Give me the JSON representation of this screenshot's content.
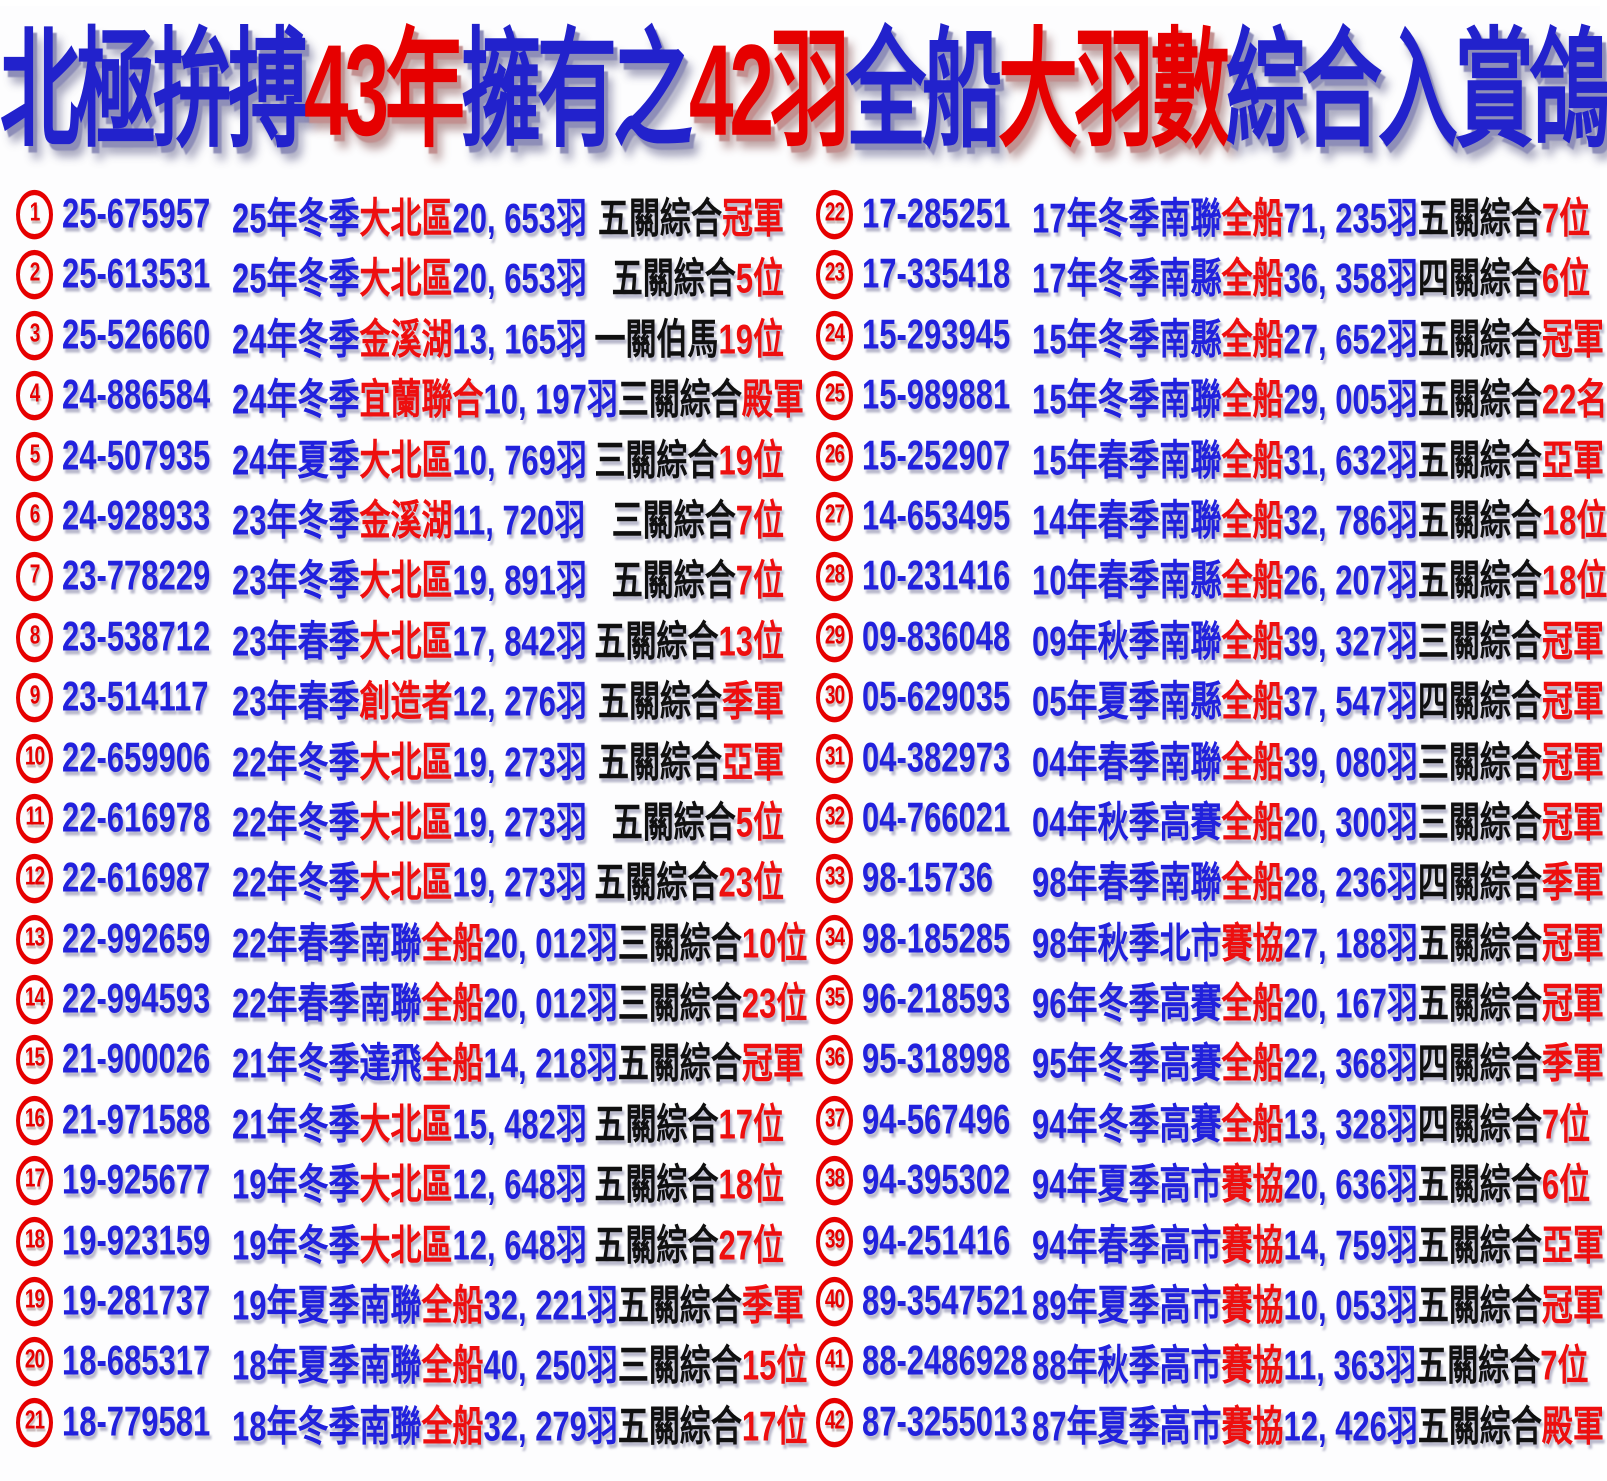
{
  "title": {
    "segments": [
      {
        "t": "北極拚搏",
        "c": "blue"
      },
      {
        "t": "43年",
        "c": "red"
      },
      {
        "t": "擁有之",
        "c": "blue"
      },
      {
        "t": "42羽",
        "c": "red"
      },
      {
        "t": "全船",
        "c": "blue"
      },
      {
        "t": "大羽數",
        "c": "red"
      },
      {
        "t": "綜合入賞鴿",
        "c": "blue"
      }
    ]
  },
  "colors": {
    "title_blue": "#2222cc",
    "title_red": "#e60000",
    "row_blue": "#2121dd",
    "row_red": "#ee0f0f",
    "row_black": "#101010",
    "badge_red": "#e60000",
    "background": "#fdfdfe"
  },
  "columns": [
    {
      "rows": [
        {
          "no": "1",
          "ring": "25-675957",
          "season": "25年冬季",
          "club": "大北區",
          "count": "20, 653羽",
          "race": "五關綜合",
          "result": "冠軍"
        },
        {
          "no": "2",
          "ring": "25-613531",
          "season": "25年冬季",
          "club": "大北區",
          "count": "20, 653羽",
          "race": "五關綜合",
          "result": "5位"
        },
        {
          "no": "3",
          "ring": "25-526660",
          "season": "24年冬季",
          "club": "金溪湖",
          "count": "13, 165羽",
          "race": "一關伯馬",
          "result": "19位"
        },
        {
          "no": "4",
          "ring": "24-886584",
          "season": "24年冬季",
          "club": "宜蘭聯合",
          "count": "10, 197羽",
          "race": "三關綜合",
          "result": "殿軍"
        },
        {
          "no": "5",
          "ring": "24-507935",
          "season": "24年夏季",
          "club": "大北區",
          "count": "10, 769羽",
          "race": "三關綜合",
          "result": "19位"
        },
        {
          "no": "6",
          "ring": "24-928933",
          "season": "23年冬季",
          "club": "金溪湖",
          "count": "11, 720羽",
          "race": "三關綜合",
          "result": "7位"
        },
        {
          "no": "7",
          "ring": "23-778229",
          "season": "23年冬季",
          "club": "大北區",
          "count": "19, 891羽",
          "race": "五關綜合",
          "result": "7位"
        },
        {
          "no": "8",
          "ring": "23-538712",
          "season": "23年春季",
          "club": "大北區",
          "count": "17, 842羽",
          "race": "五關綜合",
          "result": "13位"
        },
        {
          "no": "9",
          "ring": "23-514117",
          "season": "23年春季",
          "club": "創造者",
          "count": "12, 276羽",
          "race": "五關綜合",
          "result": "季軍"
        },
        {
          "no": "10",
          "ring": "22-659906",
          "season": "22年冬季",
          "club": "大北區",
          "count": "19, 273羽",
          "race": "五關綜合",
          "result": "亞軍"
        },
        {
          "no": "11",
          "ring": "22-616978",
          "season": "22年冬季",
          "club": "大北區",
          "count": "19, 273羽",
          "race": "五關綜合",
          "result": "5位"
        },
        {
          "no": "12",
          "ring": "22-616987",
          "season": "22年冬季",
          "club": "大北區",
          "count": "19, 273羽",
          "race": "五關綜合",
          "result": "23位"
        },
        {
          "no": "13",
          "ring": "22-992659",
          "season": "22年春季南聯",
          "club": "全船",
          "count": "20, 012羽",
          "race": "三關綜合",
          "result": "10位"
        },
        {
          "no": "14",
          "ring": "22-994593",
          "season": "22年春季南聯",
          "club": "全船",
          "count": "20, 012羽",
          "race": "三關綜合",
          "result": "23位"
        },
        {
          "no": "15",
          "ring": "21-900026",
          "season": "21年冬季達飛",
          "club": "全船",
          "count": "14, 218羽",
          "race": "五關綜合",
          "result": "冠軍"
        },
        {
          "no": "16",
          "ring": "21-971588",
          "season": "21年冬季",
          "club": "大北區",
          "count": "15, 482羽",
          "race": "五關綜合",
          "result": "17位"
        },
        {
          "no": "17",
          "ring": "19-925677",
          "season": "19年冬季",
          "club": "大北區",
          "count": "12, 648羽",
          "race": "五關綜合",
          "result": "18位"
        },
        {
          "no": "18",
          "ring": "19-923159",
          "season": "19年冬季",
          "club": "大北區",
          "count": "12, 648羽",
          "race": "五關綜合",
          "result": "27位"
        },
        {
          "no": "19",
          "ring": "19-281737",
          "season": "19年夏季南聯",
          "club": "全船",
          "count": "32, 221羽",
          "race": "五關綜合",
          "result": "季軍"
        },
        {
          "no": "20",
          "ring": "18-685317",
          "season": "18年夏季南聯",
          "club": "全船",
          "count": "40, 250羽",
          "race": "三關綜合",
          "result": "15位"
        },
        {
          "no": "21",
          "ring": "18-779581",
          "season": "18年冬季南聯",
          "club": "全船",
          "count": "32, 279羽",
          "race": "五關綜合",
          "result": "17位"
        }
      ]
    },
    {
      "rows": [
        {
          "no": "22",
          "ring": "17-285251",
          "season": "17年冬季南聯",
          "club": "全船",
          "count": "71, 235羽",
          "race": "五關綜合",
          "result": "7位"
        },
        {
          "no": "23",
          "ring": "17-335418",
          "season": "17年冬季南縣",
          "club": "全船",
          "count": "36, 358羽",
          "race": "四關綜合",
          "result": "6位"
        },
        {
          "no": "24",
          "ring": "15-293945",
          "season": "15年冬季南縣",
          "club": "全船",
          "count": "27, 652羽",
          "race": "五關綜合",
          "result": "冠軍"
        },
        {
          "no": "25",
          "ring": "15-989881",
          "season": "15年冬季南聯",
          "club": "全船",
          "count": "29, 005羽",
          "race": "五關綜合",
          "result": "22名"
        },
        {
          "no": "26",
          "ring": "15-252907",
          "season": "15年春季南聯",
          "club": "全船",
          "count": "31, 632羽",
          "race": "五關綜合",
          "result": "亞軍"
        },
        {
          "no": "27",
          "ring": "14-653495",
          "season": "14年春季南聯",
          "club": "全船",
          "count": "32, 786羽",
          "race": "五關綜合",
          "result": "18位"
        },
        {
          "no": "28",
          "ring": "10-231416",
          "season": "10年春季南縣",
          "club": "全船",
          "count": "26, 207羽",
          "race": "五關綜合",
          "result": "18位"
        },
        {
          "no": "29",
          "ring": "09-836048",
          "season": "09年秋季南聯",
          "club": "全船",
          "count": "39, 327羽",
          "race": "三關綜合",
          "result": "冠軍"
        },
        {
          "no": "30",
          "ring": "05-629035",
          "season": "05年夏季南縣",
          "club": "全船",
          "count": "37, 547羽",
          "race": "四關綜合",
          "result": "冠軍"
        },
        {
          "no": "31",
          "ring": "04-382973",
          "season": "04年春季南聯",
          "club": "全船",
          "count": "39, 080羽",
          "race": "三關綜合",
          "result": "冠軍"
        },
        {
          "no": "32",
          "ring": "04-766021",
          "season": "04年秋季高賽",
          "club": "全船",
          "count": "20, 300羽",
          "race": "三關綜合",
          "result": "冠軍"
        },
        {
          "no": "33",
          "ring": "98-15736",
          "season": "98年春季南聯",
          "club": "全船",
          "count": "28, 236羽",
          "race": "四關綜合",
          "result": "季軍"
        },
        {
          "no": "34",
          "ring": "98-185285",
          "season": "98年秋季北市",
          "club": "賽協",
          "count": "27, 188羽",
          "race": "五關綜合",
          "result": "冠軍"
        },
        {
          "no": "35",
          "ring": "96-218593",
          "season": "96年冬季高賽",
          "club": "全船",
          "count": "20, 167羽",
          "race": "五關綜合",
          "result": "冠軍"
        },
        {
          "no": "36",
          "ring": "95-318998",
          "season": "95年冬季高賽",
          "club": "全船",
          "count": "22, 368羽",
          "race": "四關綜合",
          "result": "季軍"
        },
        {
          "no": "37",
          "ring": "94-567496",
          "season": "94年冬季高賽",
          "club": "全船",
          "count": "13, 328羽",
          "race": "四關綜合",
          "result": "7位"
        },
        {
          "no": "38",
          "ring": "94-395302",
          "season": "94年夏季高市",
          "club": "賽協",
          "count": "20, 636羽",
          "race": "五關綜合",
          "result": "6位"
        },
        {
          "no": "39",
          "ring": "94-251416",
          "season": "94年春季高市",
          "club": "賽協",
          "count": "14, 759羽",
          "race": "五關綜合",
          "result": "亞軍"
        },
        {
          "no": "40",
          "ring": "89-3547521",
          "season": "89年夏季高市",
          "club": "賽協",
          "count": "10, 053羽",
          "race": "五關綜合",
          "result": "冠軍"
        },
        {
          "no": "41",
          "ring": "88-2486928",
          "season": "88年秋季高市",
          "club": "賽協",
          "count": "11, 363羽",
          "race": "五關綜合",
          "result": "7位"
        },
        {
          "no": "42",
          "ring": "87-3255013",
          "season": "87年夏季高市",
          "club": "賽協",
          "count": "12, 426羽",
          "race": "五關綜合",
          "result": "殿軍"
        }
      ]
    }
  ]
}
